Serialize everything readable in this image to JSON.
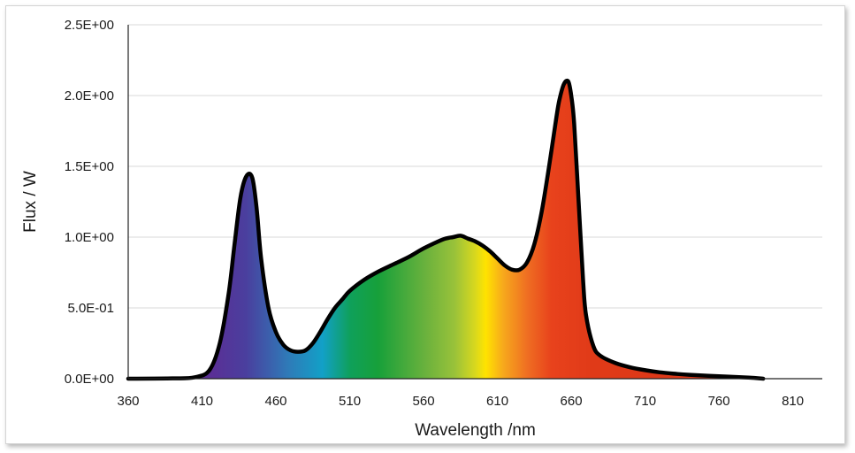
{
  "chart_data": {
    "type": "area",
    "title": "",
    "xlabel": "Wavelength /nm",
    "ylabel": "Flux / W",
    "xlim": [
      360,
      830
    ],
    "ylim": [
      0,
      2.5
    ],
    "x_ticks": [
      "360",
      "410",
      "460",
      "510",
      "560",
      "610",
      "660",
      "710",
      "760",
      "810"
    ],
    "y_ticks": [
      "0.0E+00",
      "5.0E-01",
      "1.0E+00",
      "1.5E+00",
      "2.0E+00",
      "2.5E+00"
    ],
    "grid": "horizontal",
    "fill": "visible spectrum gradient (violet-blue-cyan-green-yellow-orange-red)",
    "line_color": "#000000",
    "series": [
      {
        "x": [
          360,
          390,
          405,
          415,
          422,
          428,
          432,
          436,
          440,
          444,
          447,
          450,
          455,
          460,
          465,
          470,
          475,
          480,
          485,
          490,
          495,
          500,
          505,
          510,
          520,
          530,
          540,
          550,
          560,
          570,
          575,
          580,
          585,
          590,
          595,
          600,
          605,
          610,
          615,
          620,
          625,
          630,
          635,
          640,
          645,
          650,
          652,
          655,
          658,
          660,
          662,
          665,
          668,
          670,
          675,
          680,
          690,
          700,
          710,
          720,
          730,
          740,
          760,
          780,
          790
        ],
        "y": [
          0,
          0.002,
          0.01,
          0.06,
          0.25,
          0.6,
          0.95,
          1.28,
          1.43,
          1.42,
          1.2,
          0.85,
          0.5,
          0.33,
          0.24,
          0.2,
          0.19,
          0.2,
          0.25,
          0.33,
          0.42,
          0.5,
          0.56,
          0.62,
          0.7,
          0.76,
          0.81,
          0.86,
          0.92,
          0.97,
          0.99,
          1.0,
          1.01,
          0.99,
          0.97,
          0.94,
          0.9,
          0.85,
          0.8,
          0.77,
          0.77,
          0.82,
          0.95,
          1.18,
          1.5,
          1.85,
          1.97,
          2.08,
          2.1,
          2.0,
          1.8,
          1.25,
          0.7,
          0.45,
          0.23,
          0.16,
          0.11,
          0.08,
          0.06,
          0.045,
          0.035,
          0.027,
          0.017,
          0.008,
          0.0
        ]
      }
    ]
  }
}
